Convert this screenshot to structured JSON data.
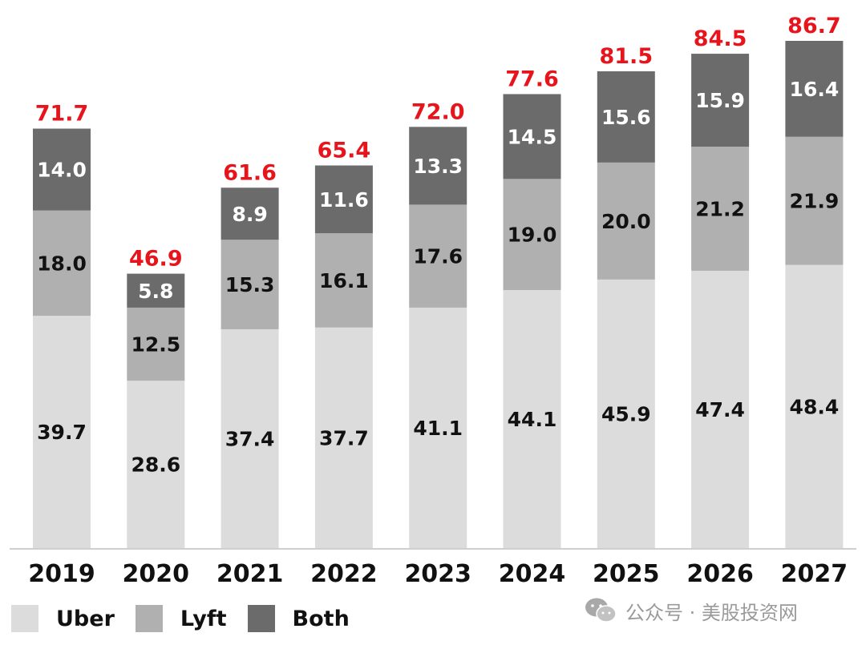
{
  "chart_data": {
    "type": "bar",
    "stacked": true,
    "categories": [
      "2019",
      "2020",
      "2021",
      "2022",
      "2023",
      "2024",
      "2025",
      "2026",
      "2027"
    ],
    "series": [
      {
        "name": "Uber",
        "color": "#dcdcdc",
        "values": [
          39.7,
          28.6,
          37.4,
          37.7,
          41.1,
          44.1,
          45.9,
          47.4,
          48.4
        ]
      },
      {
        "name": "Lyft",
        "color": "#b0b0b0",
        "values": [
          18.0,
          12.5,
          15.3,
          16.1,
          17.6,
          19.0,
          20.0,
          21.2,
          21.9
        ]
      },
      {
        "name": "Both",
        "color": "#6b6b6b",
        "values": [
          14.0,
          5.8,
          8.9,
          11.6,
          13.3,
          14.5,
          15.6,
          15.9,
          16.4
        ]
      }
    ],
    "totals": [
      71.7,
      46.9,
      61.6,
      65.4,
      72.0,
      77.6,
      81.5,
      84.5,
      86.7
    ],
    "value_labels": [
      [
        "39.7",
        "28.6",
        "37.4",
        "37.7",
        "41.1",
        "44.1",
        "45.9",
        "47.4",
        "48.4"
      ],
      [
        "18.0",
        "12.5",
        "15.3",
        "16.1",
        "17.6",
        "19.0",
        "20.0",
        "21.2",
        "21.9"
      ],
      [
        "14.0",
        "5.8",
        "8.9",
        "11.6",
        "13.3",
        "14.5",
        "15.6",
        "15.9",
        "16.4"
      ]
    ],
    "total_labels": [
      "71.7",
      "46.9",
      "61.6",
      "65.4",
      "72.0",
      "77.6",
      "81.5",
      "84.5",
      "86.7"
    ],
    "total_label_color": "#e8141c",
    "title": "",
    "xlabel": "",
    "ylabel": "",
    "ylim": [
      0,
      86.7
    ],
    "grid": false,
    "legend_position": "bottom-left"
  },
  "legend": {
    "items": [
      {
        "label": "Uber",
        "color": "#dcdcdc"
      },
      {
        "label": "Lyft",
        "color": "#b0b0b0"
      },
      {
        "label": "Both",
        "color": "#6b6b6b"
      }
    ]
  },
  "watermark": {
    "text": "公众号 · 美股投资网",
    "icon": "wechat-icon"
  }
}
